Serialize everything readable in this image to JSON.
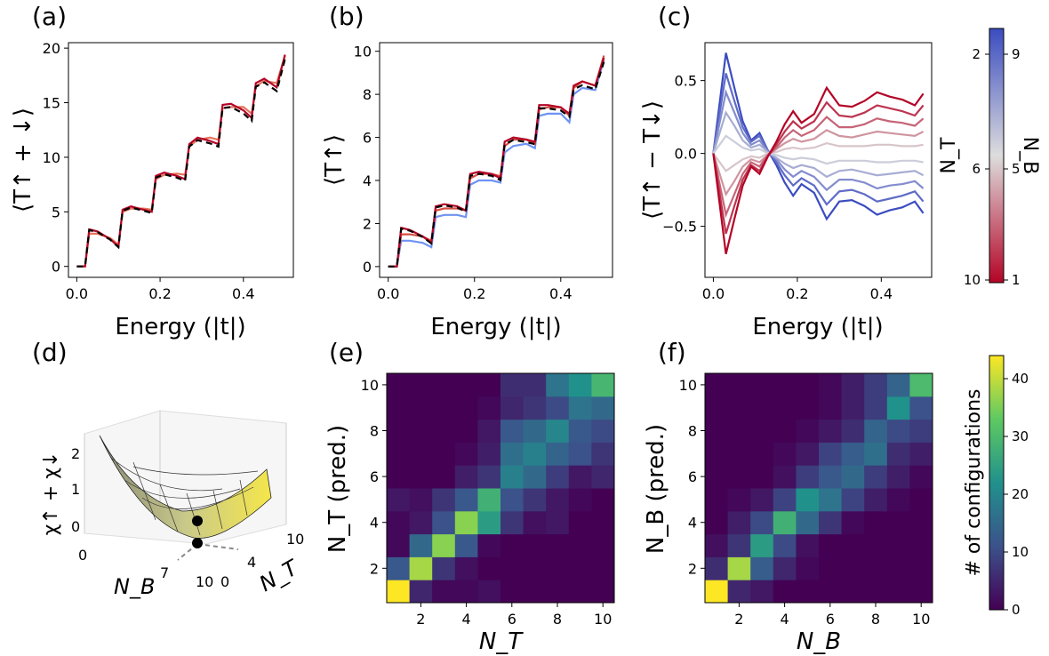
{
  "colors": {
    "cool": "#3b4cc0",
    "warm": "#b40426",
    "neutral": "#dddddd",
    "dashed": "#000000",
    "viridis_low": "#440154",
    "viridis_high": "#fde725"
  },
  "chart_data": [
    {
      "panel": "(a)",
      "type": "line",
      "xlabel": "Energy (|t|)",
      "ylabel": "⟨T↑ + ↓⟩",
      "xlim": [
        -0.02,
        0.52
      ],
      "ylim": [
        -1,
        20.5
      ],
      "xticks": [
        "0.0",
        "0.2",
        "0.4"
      ],
      "yticks": [
        "0",
        "5",
        "10",
        "15",
        "20"
      ],
      "grid": false,
      "x": [
        0.0,
        0.02,
        0.03,
        0.05,
        0.08,
        0.1,
        0.11,
        0.13,
        0.16,
        0.18,
        0.19,
        0.21,
        0.24,
        0.26,
        0.27,
        0.29,
        0.32,
        0.34,
        0.35,
        0.37,
        0.4,
        0.42,
        0.43,
        0.45,
        0.48,
        0.5
      ],
      "series": [
        {
          "values": [
            0,
            0,
            3.0,
            3.0,
            2.6,
            2.0,
            5.0,
            5.3,
            5.3,
            5.2,
            8.0,
            8.4,
            8.5,
            8.4,
            11.0,
            11.6,
            11.8,
            11.6,
            14.5,
            14.6,
            14.6,
            14.0,
            16.5,
            17.0,
            16.8,
            19.3
          ]
        },
        {
          "values": [
            0,
            0,
            3.4,
            3.2,
            2.5,
            1.8,
            5.2,
            5.5,
            5.2,
            5.0,
            8.3,
            8.6,
            8.3,
            8.0,
            11.2,
            11.8,
            11.5,
            11.2,
            14.8,
            14.9,
            14.3,
            13.6,
            16.8,
            17.2,
            16.4,
            19.4
          ]
        }
      ]
    },
    {
      "panel": "(b)",
      "type": "line",
      "xlabel": "Energy (|t|)",
      "ylabel": "⟨T↑⟩",
      "xlim": [
        -0.02,
        0.52
      ],
      "ylim": [
        -0.5,
        10.4
      ],
      "xticks": [
        "0.0",
        "0.2",
        "0.4"
      ],
      "yticks": [
        "0",
        "2",
        "4",
        "6",
        "8",
        "10"
      ],
      "grid": false,
      "x": [
        0.0,
        0.02,
        0.03,
        0.05,
        0.08,
        0.1,
        0.11,
        0.13,
        0.16,
        0.18,
        0.19,
        0.21,
        0.24,
        0.26,
        0.27,
        0.29,
        0.32,
        0.34,
        0.35,
        0.37,
        0.4,
        0.42,
        0.43,
        0.45,
        0.48,
        0.5
      ],
      "series": [
        {
          "values": [
            0,
            0,
            1.2,
            1.2,
            1.1,
            0.9,
            2.3,
            2.4,
            2.4,
            2.3,
            3.8,
            4.0,
            4.0,
            3.9,
            5.3,
            5.6,
            5.7,
            5.5,
            7.0,
            7.1,
            7.1,
            6.7,
            8.0,
            8.3,
            8.2,
            9.6
          ]
        },
        {
          "values": [
            0,
            0,
            1.5,
            1.5,
            1.4,
            1.2,
            2.6,
            2.7,
            2.7,
            2.6,
            4.1,
            4.3,
            4.3,
            4.2,
            5.6,
            5.9,
            5.9,
            5.7,
            7.3,
            7.4,
            7.4,
            7.0,
            8.3,
            8.6,
            8.4,
            9.8
          ]
        },
        {
          "values": [
            0,
            0,
            1.8,
            1.7,
            1.4,
            1.1,
            2.8,
            2.9,
            2.8,
            2.6,
            4.3,
            4.4,
            4.3,
            4.1,
            5.8,
            6.0,
            5.9,
            5.8,
            7.5,
            7.5,
            7.4,
            7.1,
            8.4,
            8.6,
            8.4,
            9.7
          ]
        }
      ]
    },
    {
      "panel": "(c)",
      "type": "line",
      "xlabel": "Energy (|t|)",
      "ylabel": "⟨T↑ − T↓⟩",
      "xlim": [
        -0.02,
        0.52
      ],
      "ylim": [
        -0.85,
        0.76
      ],
      "xticks": [
        "0.0",
        "0.2",
        "0.4"
      ],
      "yticks": [
        "−0.5",
        "0.0",
        "0.5"
      ],
      "grid": false,
      "x": [
        0.0,
        0.03,
        0.05,
        0.07,
        0.09,
        0.11,
        0.13,
        0.15,
        0.17,
        0.19,
        0.21,
        0.24,
        0.27,
        0.3,
        0.33,
        0.36,
        0.39,
        0.42,
        0.45,
        0.48,
        0.5
      ],
      "series": [
        {
          "values": [
            0.0,
            0.69,
            0.45,
            0.22,
            0.09,
            0.14,
            0.02,
            -0.08,
            -0.2,
            -0.29,
            -0.21,
            -0.27,
            -0.45,
            -0.33,
            -0.32,
            -0.36,
            -0.42,
            -0.39,
            -0.37,
            -0.33,
            -0.41
          ]
        },
        {
          "values": [
            0.0,
            0.55,
            0.36,
            0.18,
            0.08,
            0.12,
            0.02,
            -0.06,
            -0.15,
            -0.22,
            -0.17,
            -0.22,
            -0.35,
            -0.26,
            -0.25,
            -0.28,
            -0.33,
            -0.31,
            -0.29,
            -0.26,
            -0.33
          ]
        },
        {
          "values": [
            0.0,
            0.42,
            0.28,
            0.14,
            0.06,
            0.09,
            0.01,
            -0.04,
            -0.11,
            -0.16,
            -0.12,
            -0.16,
            -0.25,
            -0.18,
            -0.18,
            -0.2,
            -0.24,
            -0.22,
            -0.21,
            -0.19,
            -0.24
          ]
        },
        {
          "values": [
            0.0,
            0.28,
            0.19,
            0.09,
            0.04,
            0.06,
            0.01,
            -0.03,
            -0.07,
            -0.1,
            -0.08,
            -0.1,
            -0.16,
            -0.12,
            -0.11,
            -0.13,
            -0.15,
            -0.14,
            -0.13,
            -0.12,
            -0.15
          ]
        },
        {
          "values": [
            0.0,
            0.12,
            0.08,
            0.04,
            0.02,
            0.03,
            0.0,
            -0.01,
            -0.03,
            -0.04,
            -0.03,
            -0.04,
            -0.07,
            -0.05,
            -0.05,
            -0.05,
            -0.06,
            -0.06,
            -0.05,
            -0.05,
            -0.06
          ]
        },
        {
          "values": [
            0.0,
            -0.12,
            -0.08,
            -0.04,
            -0.02,
            -0.03,
            0.0,
            0.01,
            0.03,
            0.04,
            0.03,
            0.04,
            0.07,
            0.05,
            0.05,
            0.05,
            0.06,
            0.06,
            0.05,
            0.05,
            0.06
          ]
        },
        {
          "values": [
            0.0,
            -0.28,
            -0.19,
            -0.09,
            -0.04,
            -0.06,
            -0.01,
            0.03,
            0.07,
            0.1,
            0.08,
            0.1,
            0.16,
            0.12,
            0.11,
            0.13,
            0.15,
            0.14,
            0.13,
            0.12,
            0.15
          ]
        },
        {
          "values": [
            0.0,
            -0.42,
            -0.28,
            -0.14,
            -0.06,
            -0.09,
            -0.01,
            0.04,
            0.11,
            0.16,
            0.12,
            0.16,
            0.25,
            0.18,
            0.18,
            0.2,
            0.24,
            0.22,
            0.21,
            0.19,
            0.24
          ]
        },
        {
          "values": [
            0.0,
            -0.55,
            -0.36,
            -0.18,
            -0.08,
            -0.12,
            -0.02,
            0.06,
            0.15,
            0.22,
            0.17,
            0.22,
            0.35,
            0.26,
            0.25,
            0.28,
            0.33,
            0.31,
            0.29,
            0.26,
            0.33
          ]
        },
        {
          "values": [
            0.0,
            -0.69,
            -0.45,
            -0.22,
            -0.09,
            -0.14,
            -0.02,
            0.08,
            0.2,
            0.29,
            0.21,
            0.27,
            0.45,
            0.33,
            0.32,
            0.36,
            0.42,
            0.39,
            0.37,
            0.33,
            0.41
          ]
        }
      ],
      "colorbar": {
        "colormap": "coolwarm",
        "left_label": "N_T",
        "right_label": "N_B",
        "left_ticks": [
          "2",
          "6",
          "10"
        ],
        "right_ticks": [
          "9",
          "5",
          "1"
        ]
      }
    },
    {
      "panel": "(d)",
      "type": "surface",
      "xlabel": "N_B",
      "ylabel": "N_T",
      "zlabel": "χ↑ + χ↓",
      "xticks": [
        "0",
        "7",
        "10"
      ],
      "yticks": [
        "0",
        "4",
        "10"
      ],
      "zticks": [
        "0",
        "1",
        "2"
      ],
      "minimum": {
        "N_B": 7,
        "N_T": 4
      }
    },
    {
      "panel": "(e)",
      "type": "heatmap",
      "xlabel": "N_T",
      "ylabel": "N_T (pred.)",
      "xticks": [
        "2",
        "4",
        "6",
        "8",
        "10"
      ],
      "yticks": [
        "2",
        "4",
        "6",
        "8",
        "10"
      ],
      "vmin": 0,
      "vmax": 44,
      "rows": [
        [
          44,
          5,
          1,
          1,
          2,
          0,
          0,
          0,
          0,
          0
        ],
        [
          12,
          38,
          7,
          2,
          0,
          0,
          0,
          0,
          0,
          0
        ],
        [
          1,
          15,
          36,
          12,
          1,
          0,
          0,
          0,
          0,
          0
        ],
        [
          1,
          3,
          11,
          36,
          24,
          7,
          2,
          3,
          0,
          0
        ],
        [
          3,
          2,
          7,
          12,
          28,
          11,
          7,
          3,
          1,
          0
        ],
        [
          0,
          0,
          0,
          4,
          7,
          19,
          15,
          8,
          3,
          5
        ],
        [
          0,
          0,
          0,
          1,
          4,
          16,
          19,
          14,
          11,
          7
        ],
        [
          0,
          0,
          0,
          0,
          3,
          12,
          15,
          20,
          12,
          10
        ],
        [
          0,
          0,
          0,
          0,
          1,
          5,
          7,
          10,
          17,
          15
        ],
        [
          0,
          0,
          0,
          0,
          0,
          6,
          6,
          17,
          22,
          29
        ]
      ]
    },
    {
      "panel": "(f)",
      "type": "heatmap",
      "xlabel": "N_B",
      "ylabel": "N_B (pred.)",
      "xticks": [
        "2",
        "4",
        "6",
        "8",
        "10"
      ],
      "yticks": [
        "2",
        "4",
        "6",
        "8",
        "10"
      ],
      "vmin": 0,
      "vmax": 44,
      "rows": [
        [
          44,
          5,
          3,
          0,
          0,
          0,
          0,
          0,
          0,
          0
        ],
        [
          6,
          38,
          13,
          5,
          1,
          0,
          0,
          0,
          0,
          0
        ],
        [
          2,
          7,
          24,
          10,
          2,
          0,
          0,
          0,
          0,
          0
        ],
        [
          0,
          4,
          10,
          28,
          15,
          7,
          1,
          0,
          0,
          0
        ],
        [
          0,
          1,
          3,
          9,
          22,
          17,
          9,
          4,
          1,
          0
        ],
        [
          0,
          0,
          0,
          2,
          8,
          12,
          15,
          8,
          4,
          1
        ],
        [
          0,
          0,
          0,
          1,
          3,
          9,
          13,
          16,
          6,
          4
        ],
        [
          0,
          0,
          0,
          0,
          1,
          3,
          6,
          14,
          10,
          8
        ],
        [
          0,
          0,
          0,
          0,
          0,
          1,
          4,
          8,
          22,
          11
        ],
        [
          0,
          0,
          0,
          0,
          0,
          1,
          4,
          8,
          14,
          30
        ]
      ]
    },
    {
      "type": "colorbar",
      "label": "# of configurations",
      "colormap": "viridis",
      "ticks": [
        "0",
        "10",
        "20",
        "30",
        "40"
      ],
      "values": [
        0,
        10,
        20,
        30,
        40
      ],
      "vmax": 44
    }
  ]
}
